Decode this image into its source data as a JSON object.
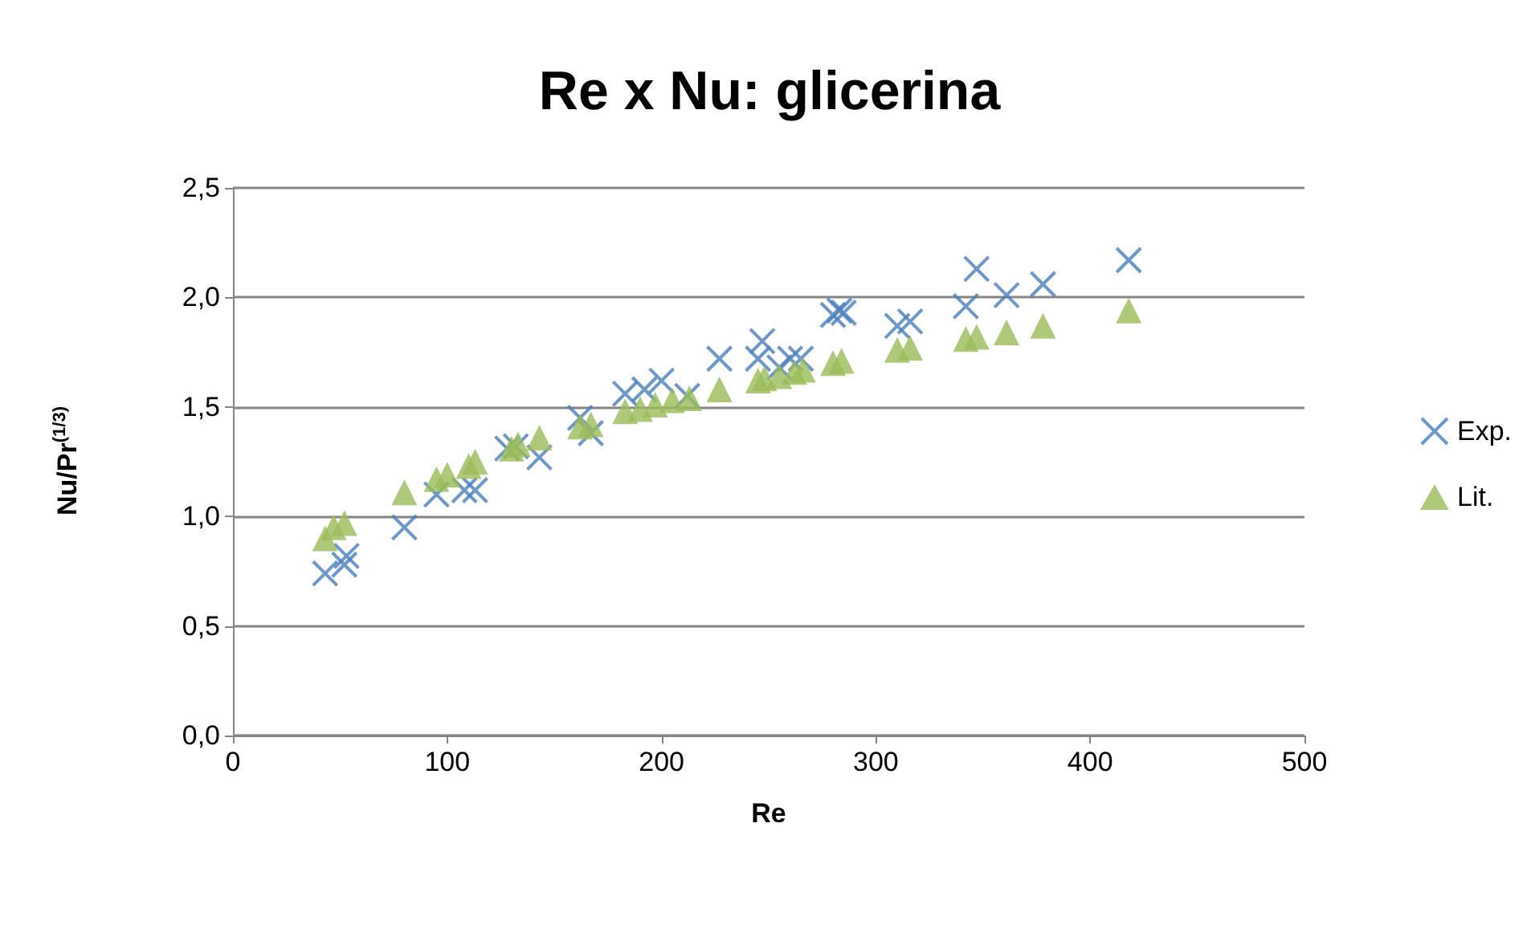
{
  "chart_data": {
    "type": "scatter",
    "title": "Re x Nu: glicerina",
    "xlabel": "Re",
    "ylabel": "Nu/Pr$^{(1/3)}$",
    "xlim": [
      0,
      500
    ],
    "xticks": [
      0,
      100,
      200,
      300,
      400,
      500
    ],
    "ylim": [
      0,
      2.5
    ],
    "yticks": [
      {
        "value": 0,
        "label": "0,0"
      },
      {
        "value": 0.5,
        "label": "0,5"
      },
      {
        "value": 1,
        "label": "1,0"
      },
      {
        "value": 1.5,
        "label": "1,5"
      },
      {
        "value": 2,
        "label": "2,0"
      },
      {
        "value": 2.5,
        "label": "2,5"
      }
    ],
    "grid": "y",
    "legend": "right",
    "series": [
      {
        "name": "Exp.",
        "color": "#4a7ebb",
        "marker": "cross",
        "x": [
          43,
          52,
          53,
          80,
          95,
          108,
          113,
          128,
          132,
          143,
          162,
          167,
          183,
          192,
          200,
          212,
          227,
          245,
          247,
          255,
          260,
          265,
          280,
          283,
          285,
          310,
          316,
          342,
          347,
          361,
          378,
          418
        ],
        "values": [
          0.74,
          0.78,
          0.82,
          0.95,
          1.1,
          1.12,
          1.12,
          1.31,
          1.32,
          1.27,
          1.45,
          1.38,
          1.56,
          1.58,
          1.62,
          1.55,
          1.72,
          1.72,
          1.8,
          1.68,
          1.72,
          1.72,
          1.92,
          1.94,
          1.93,
          1.87,
          1.89,
          1.96,
          2.13,
          2.01,
          2.06,
          2.17
        ]
      },
      {
        "name": "Lit.",
        "color": "#9bbb59",
        "marker": "triangle",
        "x": [
          43,
          47,
          52,
          80,
          95,
          100,
          110,
          113,
          130,
          133,
          143,
          162,
          167,
          183,
          190,
          197,
          205,
          213,
          227,
          245,
          248,
          255,
          262,
          266,
          280,
          284,
          310,
          316,
          342,
          347,
          361,
          378,
          418
        ],
        "values": [
          0.9,
          0.95,
          0.97,
          1.11,
          1.17,
          1.19,
          1.23,
          1.25,
          1.31,
          1.33,
          1.36,
          1.41,
          1.42,
          1.48,
          1.49,
          1.51,
          1.53,
          1.54,
          1.58,
          1.62,
          1.63,
          1.64,
          1.66,
          1.67,
          1.7,
          1.71,
          1.76,
          1.77,
          1.81,
          1.82,
          1.84,
          1.87,
          1.94
        ]
      }
    ]
  }
}
